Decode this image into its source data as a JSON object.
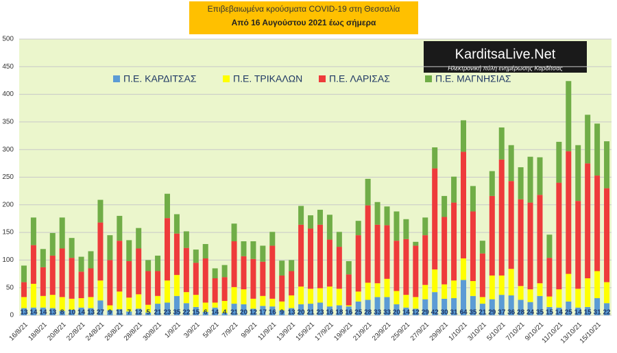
{
  "chart_data": {
    "type": "stacked-bar",
    "title": "Επιβεβαιωμένα κρούσματα COVID-19 στη Θεσσαλία",
    "subtitle": "Από 16 Αυγούστου 2021 έως σήμερα",
    "logo": {
      "name": "KarditsaLive.Net",
      "tagline": "Ηλεκτρονική πύλη ενημέρωσης Καρδίτσας"
    },
    "categories": [
      "16/8/21",
      null,
      "18/8/21",
      null,
      "20/8/21",
      null,
      "22/8/21",
      null,
      "24/8/21",
      null,
      "26/8/21",
      null,
      "28/8/21",
      null,
      "30/8/21",
      null,
      "1/9/21",
      null,
      "3/9/21",
      null,
      "5/9/21",
      null,
      "7/9/21",
      null,
      "9/9/21",
      null,
      "11/9/21",
      null,
      "13/9/21",
      null,
      "15/9/21",
      null,
      "17/9/21",
      null,
      "19/9/21",
      null,
      "21/9/21",
      null,
      "23/9/21",
      null,
      "25/9/21",
      null,
      "27/9/21",
      null,
      "29/9/21",
      null,
      "1/10/21",
      null,
      "3/10/21",
      null,
      "5/10/21",
      null,
      "7/10/21",
      null,
      "9/10/21",
      null,
      "11/10/21",
      null,
      "13/10/21",
      null,
      "15/10/21",
      null
    ],
    "series": [
      {
        "name": "Π.Ε. ΚΑΡΔΙΤΣΑΣ",
        "color": "#5b9bd5",
        "values": [
          13,
          14,
          14,
          13,
          8,
          10,
          14,
          13,
          27,
          9,
          11,
          7,
          12,
          5,
          21,
          23,
          35,
          22,
          15,
          6,
          14,
          4,
          21,
          20,
          12,
          17,
          16,
          9,
          13,
          20,
          21,
          23,
          16,
          18,
          16,
          25,
          28,
          33,
          33,
          20,
          14,
          12,
          29,
          42,
          30,
          31,
          64,
          35,
          21,
          29,
          37,
          36,
          28,
          24,
          35,
          15,
          14,
          25,
          14,
          15,
          31,
          22
        ]
      },
      {
        "name": "Π.Ε. ΤΡΙΚΑΛΩΝ",
        "color": "#ffff00",
        "values": [
          20,
          43,
          21,
          24,
          25,
          20,
          17,
          20,
          36,
          9,
          32,
          25,
          26,
          14,
          14,
          40,
          38,
          20,
          22,
          17,
          9,
          22,
          30,
          27,
          18,
          18,
          14,
          16,
          23,
          32,
          27,
          26,
          36,
          30,
          2,
          18,
          31,
          25,
          33,
          24,
          23,
          21,
          26,
          41,
          26,
          32,
          39,
          27,
          12,
          43,
          35,
          48,
          25,
          23,
          23,
          19,
          33,
          50,
          34,
          52,
          49,
          38
        ]
      },
      {
        "name": "Π.Ε. ΛΑΡΙΣΑΣ",
        "color": "#ee3b3b",
        "values": [
          27,
          70,
          52,
          71,
          88,
          74,
          48,
          52,
          105,
          82,
          92,
          66,
          83,
          61,
          45,
          113,
          75,
          80,
          58,
          80,
          44,
          43,
          83,
          60,
          72,
          62,
          96,
          47,
          44,
          112,
          109,
          115,
          85,
          76,
          56,
          102,
          140,
          106,
          97,
          91,
          101,
          93,
          90,
          183,
          122,
          141,
          193,
          126,
          79,
          144,
          210,
          159,
          157,
          157,
          160,
          70,
          193,
          222,
          159,
          208,
          173,
          170
        ]
      },
      {
        "name": "Π.Ε. ΜΑΓΝΗΣΙΑΣ",
        "color": "#70ad47",
        "values": [
          30,
          50,
          33,
          41,
          56,
          36,
          27,
          31,
          41,
          45,
          45,
          38,
          37,
          20,
          28,
          44,
          35,
          30,
          24,
          26,
          18,
          22,
          32,
          27,
          32,
          29,
          25,
          27,
          20,
          34,
          24,
          27,
          45,
          27,
          24,
          26,
          48,
          41,
          34,
          53,
          36,
          7,
          32,
          38,
          38,
          47,
          57,
          46,
          23,
          45,
          58,
          65,
          58,
          83,
          68,
          42,
          74,
          127,
          101,
          88,
          94,
          85
        ]
      }
    ],
    "ylim": [
      0,
      500
    ],
    "yticks": [
      0,
      50,
      100,
      150,
      200,
      250,
      300,
      350,
      400,
      450,
      500
    ],
    "grid": true
  }
}
